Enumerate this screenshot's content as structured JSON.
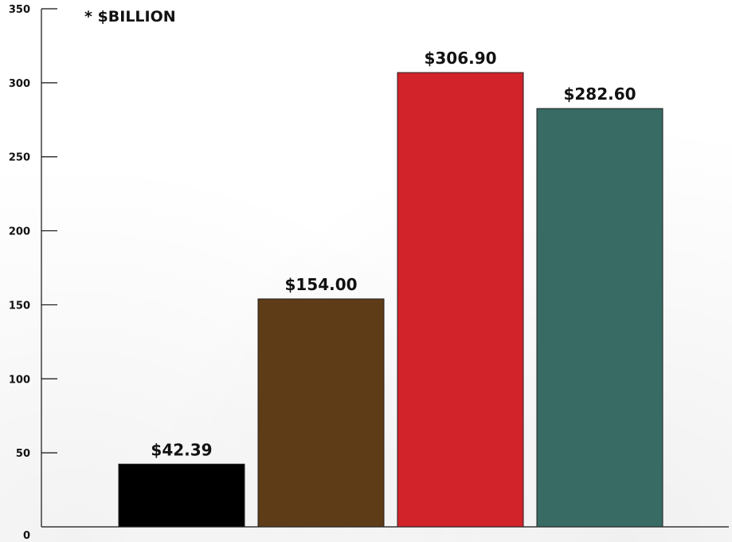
{
  "chart_data": {
    "type": "bar",
    "unit_label": "* $BILLION",
    "categories": [
      "",
      "",
      "",
      ""
    ],
    "values": [
      42.39,
      154.0,
      306.9,
      282.6
    ],
    "value_labels": [
      "$42.39",
      "$154.00",
      "$306.90",
      "$282.60"
    ],
    "colors": [
      "#000000",
      "#5e3c17",
      "#d2232a",
      "#386b63"
    ],
    "yticks": [
      0,
      50,
      100,
      150,
      200,
      250,
      300,
      350
    ],
    "ytick_labels": [
      "0",
      "50",
      "100",
      "150",
      "200",
      "250",
      "300",
      "350"
    ],
    "ylim": [
      0,
      350
    ],
    "grid": false,
    "legend": "none"
  }
}
